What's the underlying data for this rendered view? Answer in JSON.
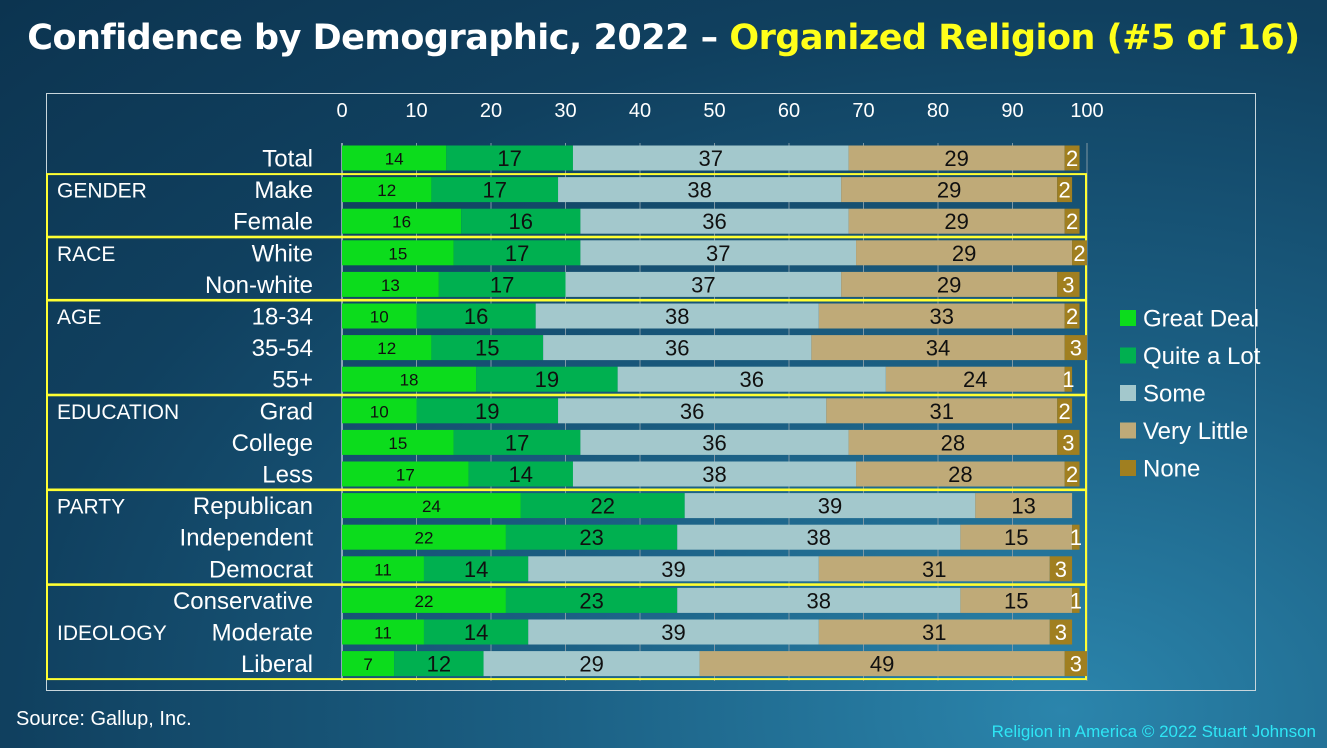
{
  "title": {
    "main": "Confidence by Demographic, 2022 – ",
    "highlight": "Organized Religion (#5 of 16)"
  },
  "source": "Source: Gallup, Inc.",
  "copyright": "Religion in America © 2022 Stuart Johnson",
  "colors": {
    "great_deal": "#0cdc1c",
    "quite_a_lot": "#00b050",
    "some": "#a3c8cc",
    "very_little": "#bfaa78",
    "none": "#a07f20",
    "group_box": "#ffff33",
    "highlight_text": "#ffff1a"
  },
  "chart_data": {
    "type": "bar",
    "orientation": "horizontal",
    "stacked": true,
    "xlim": [
      0,
      100
    ],
    "x_ticks": [
      "0",
      "10",
      "20",
      "30",
      "40",
      "50",
      "60",
      "70",
      "80",
      "90",
      "100"
    ],
    "grid": true,
    "legend_position": "right",
    "groups": [
      {
        "name": "",
        "rows": [
          "Total"
        ]
      },
      {
        "name": "GENDER",
        "rows": [
          "Make",
          "Female"
        ]
      },
      {
        "name": "RACE",
        "rows": [
          "White",
          "Non-white"
        ]
      },
      {
        "name": "AGE",
        "rows": [
          "18-34",
          "35-54",
          "55+"
        ]
      },
      {
        "name": "EDUCATION",
        "rows": [
          "Grad",
          "College",
          "Less"
        ]
      },
      {
        "name": "PARTY",
        "rows": [
          "Republican",
          "Independent",
          "Democrat"
        ]
      },
      {
        "name": "IDEOLOGY",
        "rows": [
          "Conservative",
          "Moderate",
          "Liberal"
        ]
      }
    ],
    "categories": [
      "Total",
      "Make",
      "Female",
      "White",
      "Non-white",
      "18-34",
      "35-54",
      "55+",
      "Grad",
      "College",
      "Less",
      "Republican",
      "Independent",
      "Democrat",
      "Conservative",
      "Moderate",
      "Liberal"
    ],
    "series": [
      {
        "name": "Great Deal",
        "values": [
          14,
          12,
          16,
          15,
          13,
          10,
          12,
          18,
          10,
          15,
          17,
          24,
          22,
          11,
          22,
          11,
          7
        ]
      },
      {
        "name": "Quite a Lot",
        "values": [
          17,
          17,
          16,
          17,
          17,
          16,
          15,
          19,
          19,
          17,
          14,
          22,
          23,
          14,
          23,
          14,
          12
        ]
      },
      {
        "name": "Some",
        "values": [
          37,
          38,
          36,
          37,
          37,
          38,
          36,
          36,
          36,
          36,
          38,
          39,
          38,
          39,
          38,
          39,
          29
        ]
      },
      {
        "name": "Very Little",
        "values": [
          29,
          29,
          29,
          29,
          29,
          33,
          34,
          24,
          31,
          28,
          28,
          13,
          15,
          31,
          15,
          31,
          49
        ]
      },
      {
        "name": "None",
        "values": [
          2,
          2,
          2,
          2,
          3,
          2,
          3,
          1,
          2,
          3,
          2,
          null,
          1,
          3,
          1,
          3,
          3
        ]
      }
    ]
  }
}
